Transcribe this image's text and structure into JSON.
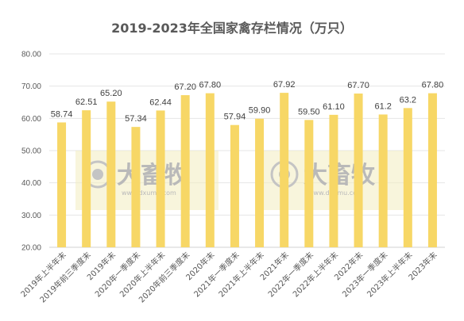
{
  "chart_data": {
    "type": "bar",
    "title": "2019-2023年全国家禽存栏情况（万只）",
    "xlabel": "",
    "ylabel": "",
    "ylim": [
      20,
      80
    ],
    "yticks": [
      "20.00",
      "30.00",
      "40.00",
      "50.00",
      "60.00",
      "70.00",
      "80.00"
    ],
    "grid": true,
    "legend": "none",
    "bar_color": "#f7d766",
    "categories": [
      "2019年上半年末",
      "2019年前三季度末",
      "2019年末",
      "2020年一季度末",
      "2020年上半年末",
      "2020年前三季度末",
      "2020年末",
      "2021年一季度末",
      "2021年上半年末",
      "2021年末",
      "2022年一季度末",
      "2022年上半年末",
      "2022年末",
      "2023年一季度末",
      "2023年上半年末",
      "2023年末"
    ],
    "values": [
      58.74,
      62.51,
      65.2,
      57.34,
      62.44,
      67.2,
      67.8,
      57.94,
      59.9,
      67.92,
      59.5,
      61.1,
      67.7,
      61.2,
      63.2,
      67.8
    ],
    "data_labels": [
      "58.74",
      "62.51",
      "65.20",
      "57.34",
      "62.44",
      "67.20",
      "67.80",
      "57.94",
      "59.90",
      "67.92",
      "59.50",
      "61.10",
      "67.70",
      "61.2",
      "63.2",
      "67.80"
    ]
  },
  "watermark": {
    "text": "大畜牧",
    "sub": "www.dxumu.com",
    "color": "#f3ecc0"
  }
}
